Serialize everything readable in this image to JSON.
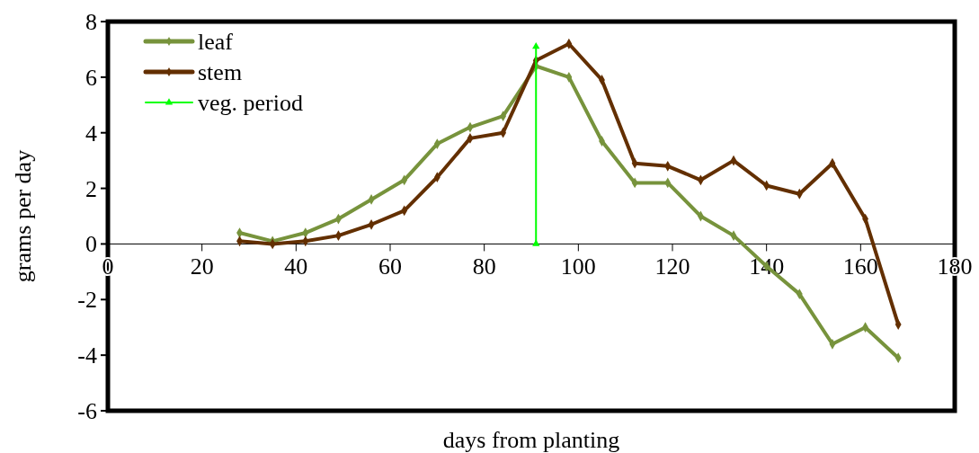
{
  "chart_data": {
    "type": "line",
    "xlabel": "days from planting",
    "ylabel": "grams per day",
    "x": [
      28,
      35,
      42,
      49,
      56,
      63,
      70,
      77,
      84,
      91,
      98,
      105,
      112,
      119,
      126,
      133,
      140,
      147,
      154,
      161,
      168
    ],
    "series": [
      {
        "name": "leaf",
        "color": "#77933c",
        "marker": "diamond",
        "values": [
          0.4,
          0.1,
          0.4,
          0.9,
          1.6,
          2.3,
          3.6,
          4.2,
          4.6,
          6.4,
          6.0,
          3.7,
          2.2,
          2.2,
          1.0,
          0.3,
          -0.8,
          -1.8,
          -3.6,
          -3.0,
          -4.1
        ]
      },
      {
        "name": "stem",
        "color": "#632f00",
        "marker": "diamond",
        "values": [
          0.1,
          0.0,
          0.1,
          0.3,
          0.7,
          1.2,
          2.4,
          3.8,
          4.0,
          6.6,
          7.2,
          5.9,
          2.9,
          2.8,
          2.3,
          3.0,
          2.1,
          1.8,
          2.9,
          0.9,
          -2.9
        ]
      },
      {
        "name": "veg. period",
        "color": "#00ff00",
        "marker": "triangle",
        "x": [
          91,
          91
        ],
        "values": [
          0,
          7.1
        ]
      }
    ],
    "xlim": [
      0,
      180
    ],
    "xticks": [
      0,
      20,
      40,
      60,
      80,
      100,
      120,
      140,
      160,
      180
    ],
    "ylim": [
      -6,
      8
    ],
    "yticks": [
      -6,
      -4,
      -2,
      0,
      2,
      4,
      6,
      8
    ],
    "grid": false,
    "legend": "top left"
  }
}
